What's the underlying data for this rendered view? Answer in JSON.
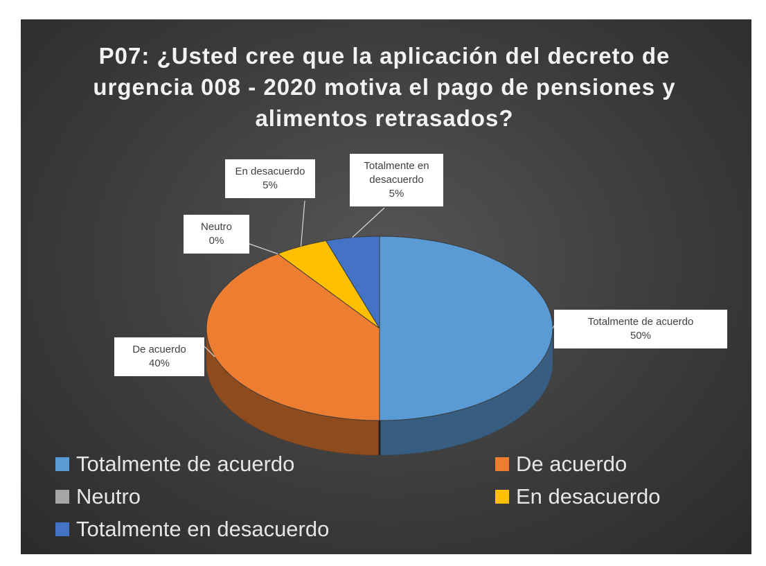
{
  "chart_data": {
    "type": "pie3d",
    "title": "P07: ¿Usted cree que la aplicación del decreto de urgencia 008 - 2020 motiva el pago de pensiones y alimentos retrasados?",
    "categories": [
      "Totalmente de acuerdo",
      "De acuerdo",
      "Neutro",
      "En desacuerdo",
      "Totalmente en desacuerdo"
    ],
    "values": [
      50,
      40,
      0,
      5,
      5
    ],
    "value_labels": [
      "50%",
      "40%",
      "0%",
      "5%",
      "5%"
    ],
    "colors": [
      "#5b9bd5",
      "#ed7d31",
      "#a5a5a5",
      "#ffc000",
      "#4472c4"
    ],
    "legend": "bottom"
  }
}
